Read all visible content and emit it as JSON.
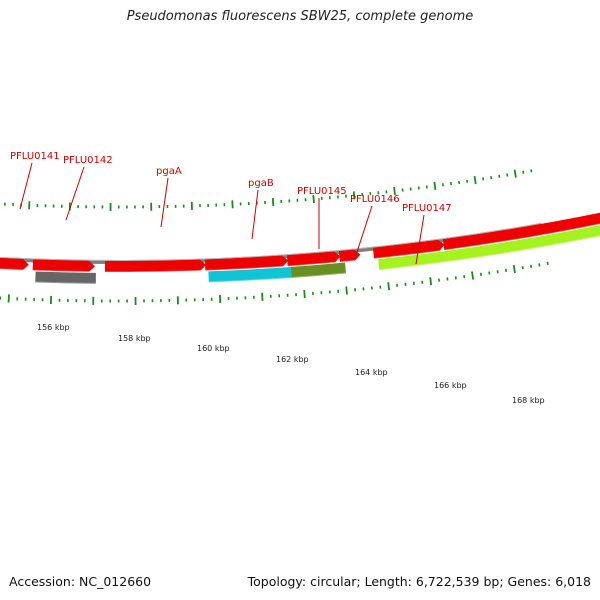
{
  "title": "Pseudomonas fluorescens SBW25, complete genome",
  "footer": {
    "accession": "Accession: NC_012660",
    "topology": "Topology: circular; Length: 6,722,539 bp; Genes: 6,018"
  },
  "colors": {
    "backbone": "#7f7f7f",
    "cds": "#ee0000",
    "tick": "#1a8a1a",
    "label": "#cc0000",
    "feature_gray": "#666666",
    "feature_cyan": "#11c4d4",
    "feature_olive": "#6b8e23",
    "feature_lime": "#a6f21e"
  },
  "scale_labels": [
    "156 kbp",
    "158 kbp",
    "160 kbp",
    "162 kbp",
    "164 kbp",
    "166 kbp",
    "168 kbp"
  ],
  "gene_labels": [
    "PFLU0141",
    "PFLU0142",
    "pgaA",
    "pgaB",
    "PFLU0145",
    "PFLU0146",
    "PFLU0147"
  ]
}
